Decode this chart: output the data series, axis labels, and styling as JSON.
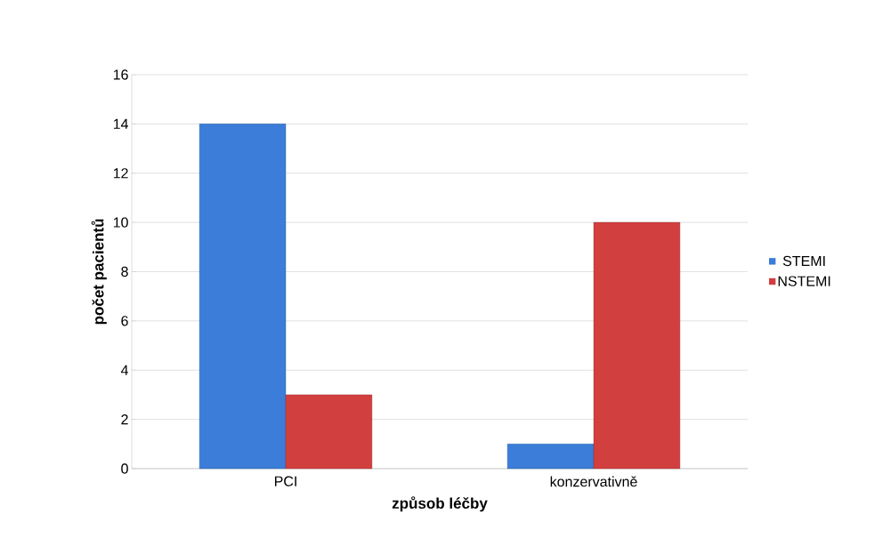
{
  "chart_data": {
    "type": "bar",
    "xlabel": "způsob léčby",
    "ylabel": "počet pacientů",
    "categories": [
      "PCI",
      "konzervativně"
    ],
    "series": [
      {
        "name": "STEMI",
        "color": "#3b7dd8",
        "values": [
          14,
          1
        ]
      },
      {
        "name": "NSTEMI",
        "color": "#d23f3f",
        "values": [
          3,
          10
        ]
      }
    ],
    "ylim": [
      0,
      16
    ],
    "yticks": [
      0,
      2,
      4,
      6,
      8,
      10,
      12,
      14,
      16
    ],
    "grid": "y",
    "legend": "right"
  }
}
